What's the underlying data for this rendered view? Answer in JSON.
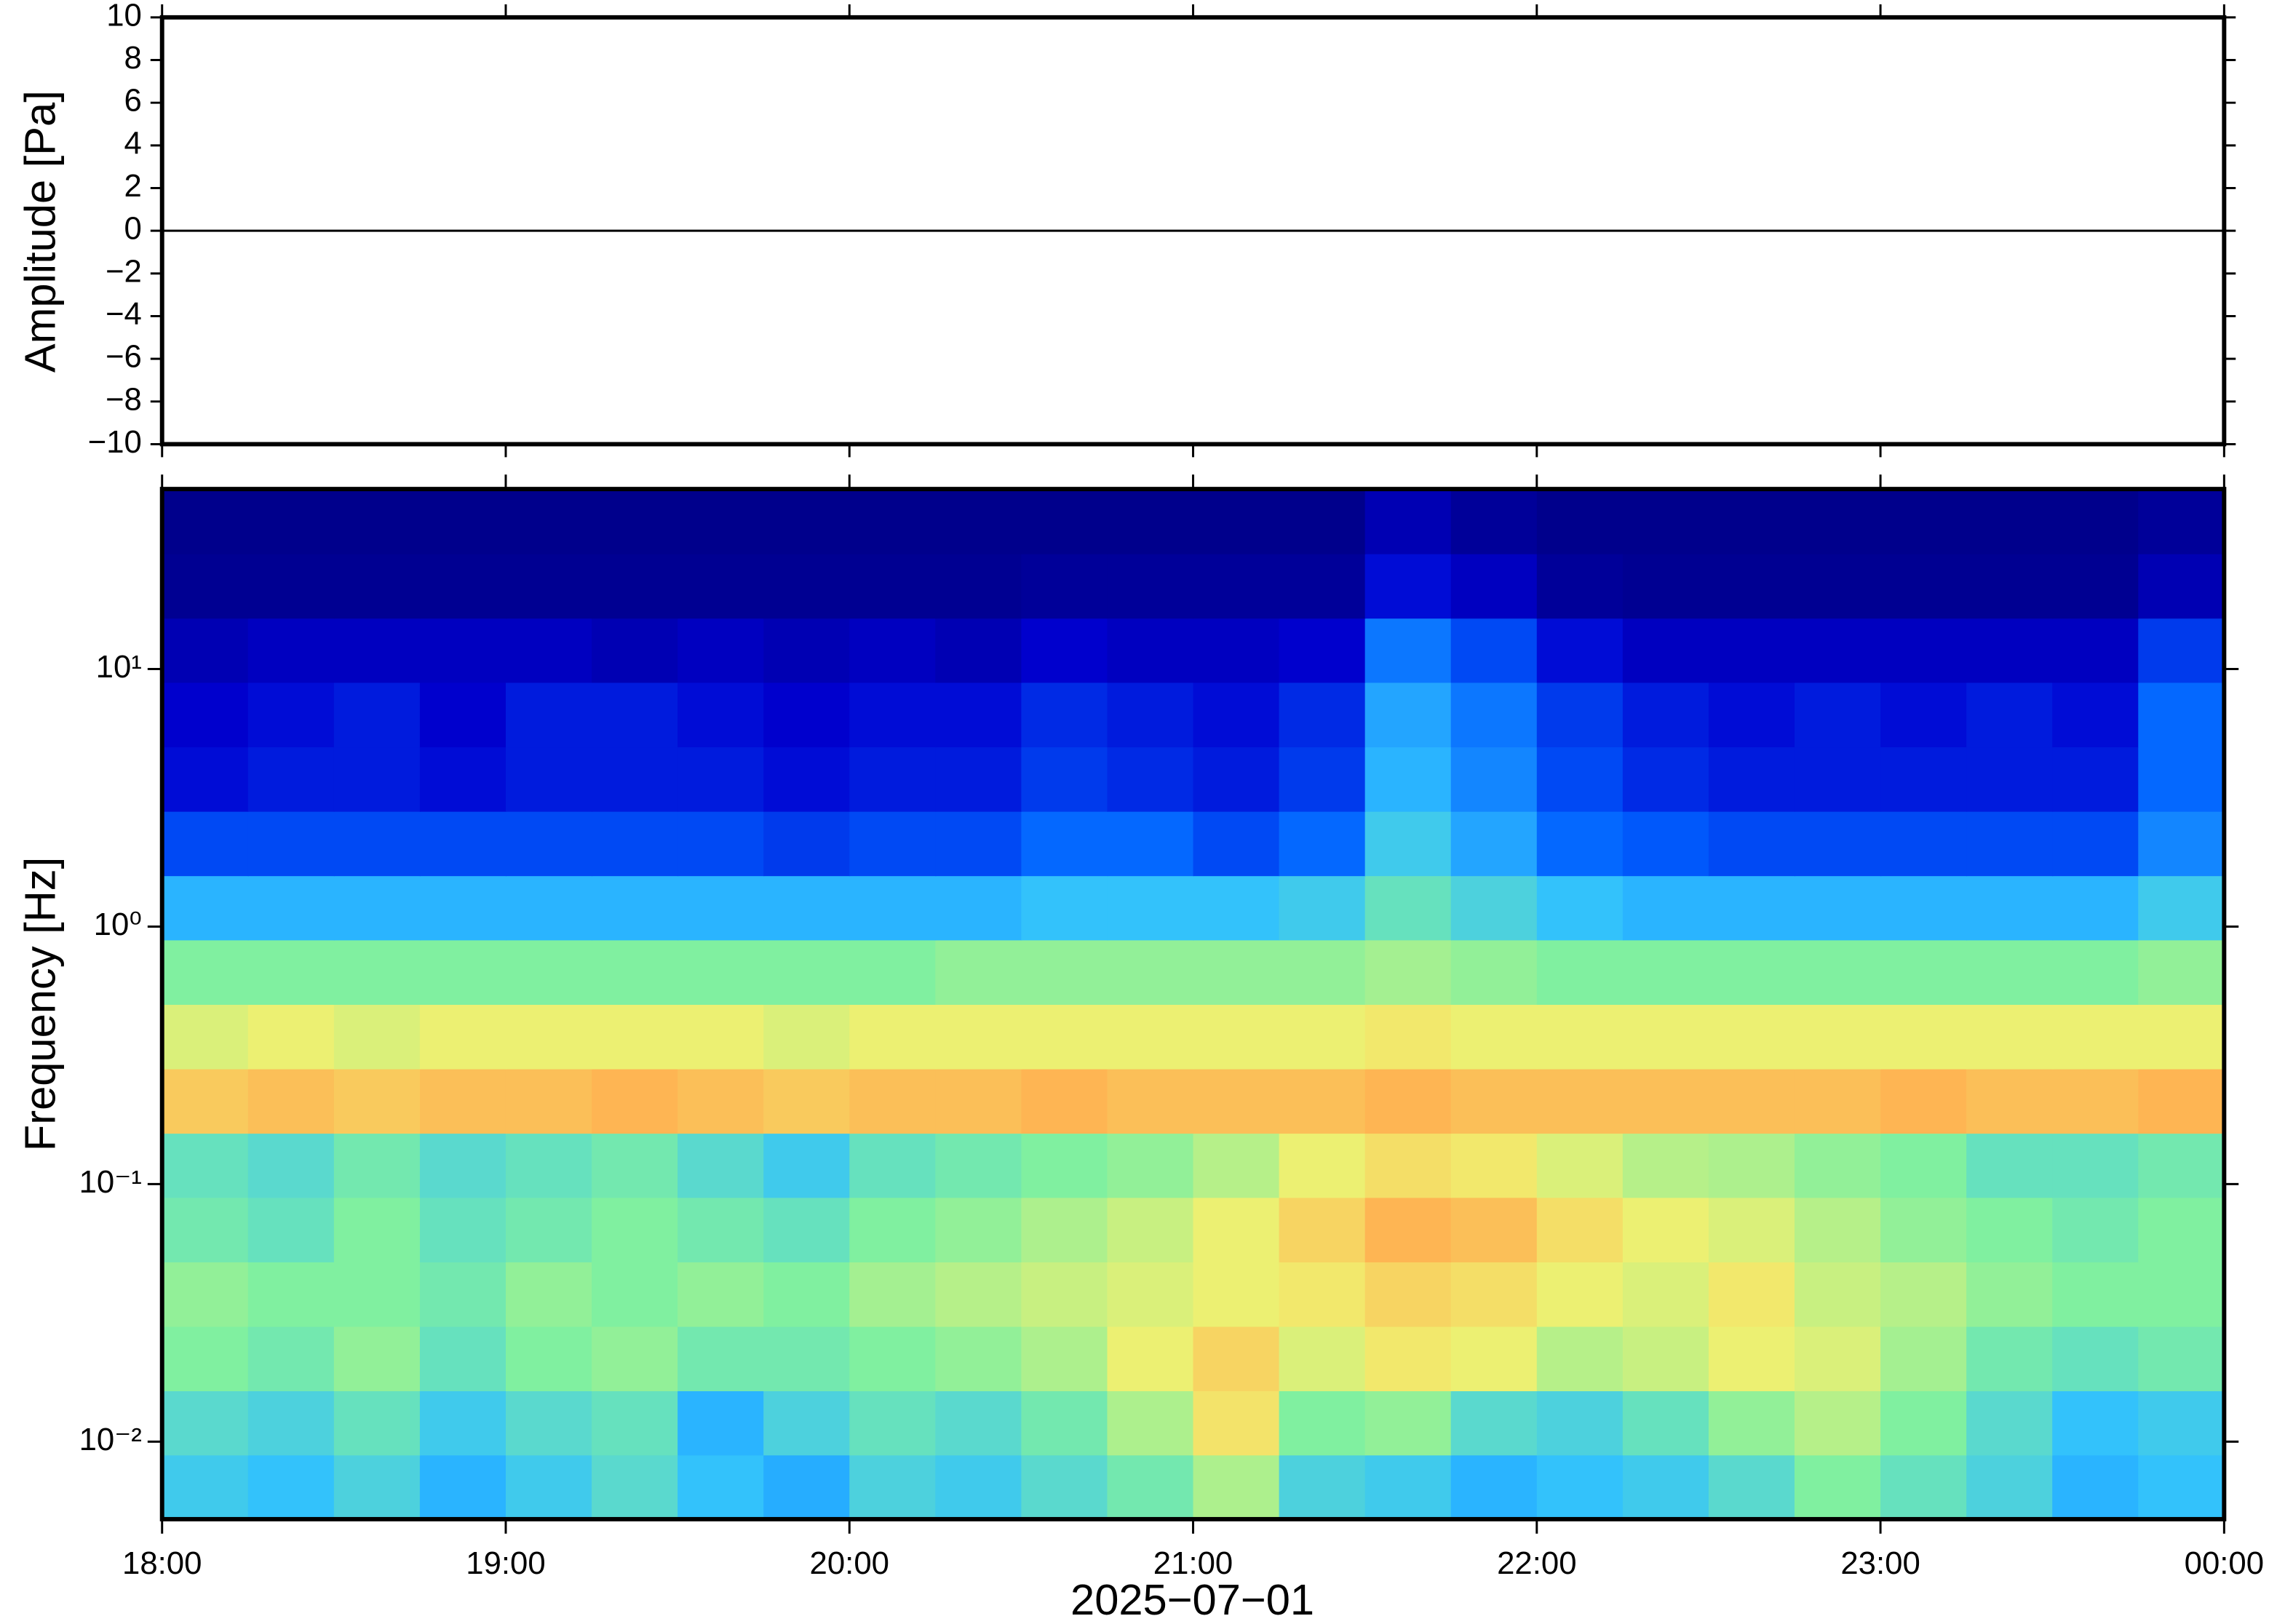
{
  "chart_data": [
    {
      "type": "line",
      "ylabel": "Amplitude [Pa]",
      "color": "#000000",
      "x": [
        18,
        18.25,
        18.5,
        18.75,
        19,
        19.25,
        19.5,
        19.75,
        20,
        20.25,
        20.5,
        20.75,
        21,
        21.25,
        21.5,
        21.75,
        22,
        22.25,
        22.5,
        22.75,
        23,
        23.25,
        23.5,
        23.75,
        24
      ],
      "values": [
        0,
        0,
        0,
        0,
        0,
        0,
        0,
        0,
        0,
        0,
        0,
        0,
        0,
        0,
        0,
        0,
        0,
        0,
        0,
        0,
        0,
        0,
        0,
        0,
        0
      ],
      "xlim": [
        18,
        24
      ],
      "ylim": [
        -10,
        10
      ],
      "yticks": [
        {
          "value": -10,
          "label": "−10"
        },
        {
          "value": -8,
          "label": "−8"
        },
        {
          "value": -6,
          "label": "−6"
        },
        {
          "value": -4,
          "label": "−4"
        },
        {
          "value": -2,
          "label": "−2"
        },
        0,
        2,
        4,
        6,
        8,
        10
      ]
    },
    {
      "type": "heatmap",
      "ylabel": "Frequency [Hz]",
      "xlabel": "2025−07−01",
      "ylog": true,
      "xlim": [
        18,
        24
      ],
      "ylim": [
        0.005,
        50
      ],
      "xticks": [
        {
          "value": 18,
          "label": "18:00"
        },
        {
          "value": 19,
          "label": "19:00"
        },
        {
          "value": 20,
          "label": "20:00"
        },
        {
          "value": 21,
          "label": "21:00"
        },
        {
          "value": 22,
          "label": "22:00"
        },
        {
          "value": 23,
          "label": "23:00"
        },
        {
          "value": 24,
          "label": "00:00"
        }
      ],
      "yticks": [
        {
          "value": 0.01,
          "label": "10⁻²"
        },
        {
          "value": 0.1,
          "label": "10⁻¹"
        },
        {
          "value": 1,
          "label": "10⁰"
        },
        {
          "value": 10,
          "label": "10¹"
        }
      ],
      "x_edges": [
        18,
        18.25,
        18.5,
        18.75,
        19,
        19.25,
        19.5,
        19.75,
        20,
        20.25,
        20.5,
        20.75,
        21,
        21.25,
        21.5,
        21.75,
        22,
        22.25,
        22.5,
        22.75,
        23,
        23.25,
        23.5,
        23.75,
        24
      ],
      "y_edges": [
        0.005,
        0.0089,
        0.0158,
        0.0281,
        0.05,
        0.089,
        0.158,
        0.281,
        0.5,
        0.89,
        1.58,
        2.81,
        5,
        8.9,
        15.8,
        28.1,
        50
      ],
      "zlim": [
        0,
        100
      ],
      "colormap": [
        "#00007f",
        "#0000d0",
        "#0060ff",
        "#30c0ff",
        "#80f0a0",
        "#f0f070",
        "#ffb050",
        "#ff6020",
        "#c00000"
      ],
      "z": [
        [
          40,
          38,
          42,
          36,
          40,
          44,
          38,
          35,
          42,
          40,
          44,
          48,
          55,
          42,
          40,
          36,
          38,
          40,
          44,
          50,
          46,
          42,
          36,
          38
        ],
        [
          44,
          42,
          46,
          40,
          44,
          46,
          36,
          42,
          46,
          44,
          48,
          55,
          65,
          50,
          52,
          44,
          42,
          46,
          52,
          56,
          50,
          44,
          38,
          40
        ],
        [
          50,
          48,
          52,
          46,
          50,
          52,
          48,
          48,
          50,
          52,
          55,
          62,
          68,
          60,
          64,
          62,
          56,
          58,
          62,
          60,
          54,
          48,
          46,
          48
        ],
        [
          52,
          50,
          50,
          48,
          52,
          50,
          52,
          50,
          54,
          56,
          58,
          60,
          62,
          64,
          68,
          66,
          62,
          60,
          64,
          58,
          56,
          52,
          50,
          50
        ],
        [
          48,
          46,
          50,
          46,
          48,
          50,
          48,
          46,
          50,
          52,
          55,
          58,
          62,
          68,
          74,
          72,
          66,
          62,
          60,
          56,
          52,
          50,
          48,
          50
        ],
        [
          46,
          44,
          48,
          44,
          46,
          48,
          44,
          40,
          46,
          48,
          50,
          52,
          56,
          62,
          66,
          64,
          60,
          56,
          55,
          52,
          50,
          46,
          46,
          48
        ],
        [
          70,
          72,
          70,
          72,
          72,
          74,
          72,
          70,
          72,
          72,
          74,
          72,
          72,
          72,
          74,
          72,
          72,
          72,
          72,
          72,
          74,
          72,
          72,
          74
        ],
        [
          60,
          62,
          60,
          62,
          62,
          62,
          62,
          60,
          62,
          62,
          62,
          62,
          62,
          62,
          64,
          62,
          62,
          62,
          62,
          62,
          62,
          62,
          62,
          62
        ],
        [
          50,
          50,
          50,
          50,
          50,
          50,
          50,
          50,
          50,
          52,
          52,
          52,
          52,
          52,
          54,
          52,
          50,
          50,
          50,
          50,
          50,
          50,
          50,
          52
        ],
        [
          36,
          36,
          36,
          36,
          36,
          36,
          36,
          36,
          36,
          36,
          38,
          38,
          38,
          40,
          46,
          42,
          38,
          36,
          36,
          36,
          36,
          36,
          36,
          40
        ],
        [
          22,
          22,
          22,
          22,
          22,
          22,
          22,
          20,
          22,
          22,
          26,
          26,
          22,
          26,
          40,
          34,
          26,
          24,
          22,
          22,
          22,
          22,
          22,
          30
        ],
        [
          14,
          16,
          16,
          14,
          16,
          16,
          16,
          14,
          16,
          16,
          20,
          18,
          16,
          20,
          36,
          30,
          22,
          18,
          16,
          16,
          16,
          16,
          16,
          26
        ],
        [
          12,
          14,
          16,
          12,
          16,
          16,
          14,
          12,
          14,
          14,
          18,
          16,
          14,
          18,
          34,
          28,
          20,
          16,
          14,
          16,
          14,
          16,
          14,
          26
        ],
        [
          8,
          10,
          10,
          10,
          10,
          8,
          10,
          8,
          10,
          8,
          12,
          10,
          10,
          12,
          28,
          22,
          14,
          10,
          10,
          10,
          10,
          10,
          10,
          20
        ],
        [
          3,
          3,
          3,
          3,
          3,
          3,
          3,
          3,
          3,
          3,
          4,
          4,
          4,
          4,
          14,
          10,
          4,
          3,
          3,
          3,
          3,
          3,
          3,
          8
        ],
        [
          2,
          2,
          2,
          2,
          2,
          2,
          2,
          2,
          2,
          2,
          2,
          2,
          2,
          2,
          8,
          4,
          2,
          2,
          2,
          2,
          2,
          2,
          2,
          4
        ]
      ]
    }
  ]
}
